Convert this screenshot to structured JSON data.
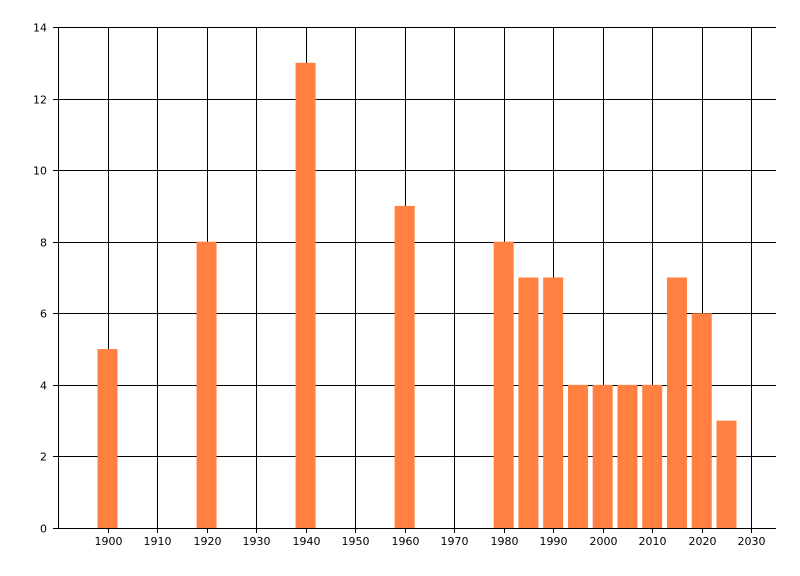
{
  "chart_data": {
    "type": "bar",
    "title": "",
    "xlabel": "",
    "ylabel": "",
    "x": [
      1900,
      1920,
      1940,
      1960,
      1980,
      1985,
      1990,
      1995,
      2000,
      2005,
      2010,
      2015,
      2020,
      2025
    ],
    "values": [
      5,
      8,
      13,
      9,
      8,
      7,
      7,
      4,
      4,
      4,
      4,
      7,
      6,
      3
    ],
    "xlim": [
      1890,
      2035
    ],
    "ylim": [
      0,
      14
    ],
    "x_ticks": [
      1900,
      1910,
      1920,
      1930,
      1940,
      1950,
      1960,
      1970,
      1980,
      1990,
      2000,
      2010,
      2020,
      2030
    ],
    "y_ticks": [
      0,
      2,
      4,
      6,
      8,
      10,
      12,
      14
    ],
    "grid": true,
    "legend": "none",
    "colors": {
      "bar": "#ff8040",
      "grid": "#000000",
      "background": "#ffffff"
    }
  }
}
